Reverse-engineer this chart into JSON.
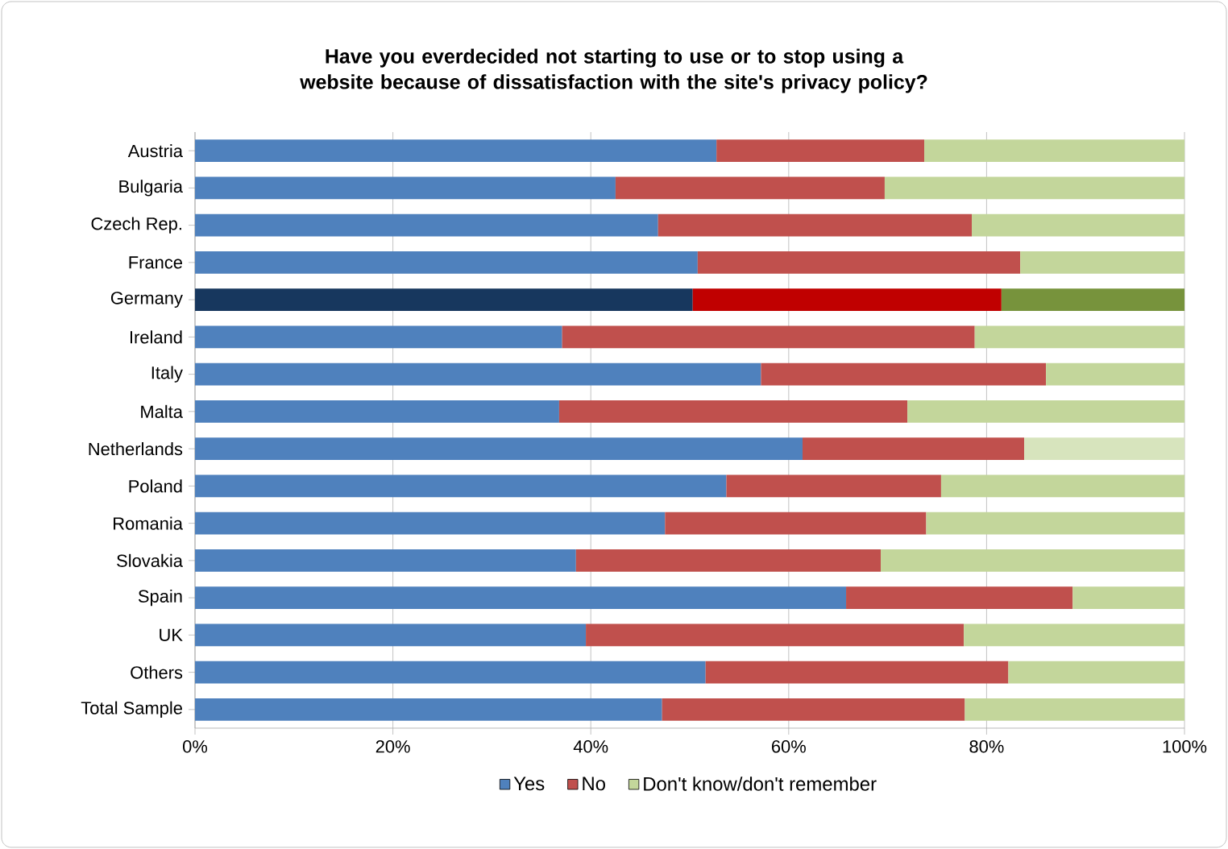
{
  "chart_data": {
    "type": "bar",
    "orientation": "horizontal",
    "stacked": true,
    "title": "Have you everdecided not starting to use or to stop using a website because of dissatisfaction with the site's privacy policy?",
    "categories": [
      "Austria",
      "Bulgaria",
      "Czech Rep.",
      "France",
      "Germany",
      "Ireland",
      "Italy",
      "Malta",
      "Netherlands",
      "Poland",
      "Romania",
      "Slovakia",
      "Spain",
      "UK",
      "Others",
      "Total Sample"
    ],
    "series": [
      {
        "name": "Yes",
        "color": "#4f81bd",
        "colors": [
          "#4f81bd",
          "#4f81bd",
          "#4f81bd",
          "#4f81bd",
          "#17375e",
          "#4f81bd",
          "#4f81bd",
          "#4f81bd",
          "#4f81bd",
          "#4f81bd",
          "#4f81bd",
          "#4f81bd",
          "#4f81bd",
          "#4f81bd",
          "#4f81bd",
          "#4f81bd"
        ],
        "values": [
          52.7,
          42.5,
          46.8,
          50.8,
          50.3,
          37.1,
          57.2,
          36.8,
          61.4,
          53.7,
          47.5,
          38.5,
          65.8,
          39.5,
          51.6,
          47.2
        ]
      },
      {
        "name": "No",
        "color": "#c0504d",
        "colors": [
          "#c0504d",
          "#c0504d",
          "#c0504d",
          "#c0504d",
          "#c00000",
          "#c0504d",
          "#c0504d",
          "#c0504d",
          "#c0504d",
          "#c0504d",
          "#c0504d",
          "#c0504d",
          "#c0504d",
          "#c0504d",
          "#c0504d",
          "#c0504d"
        ],
        "values": [
          21.0,
          27.2,
          31.7,
          32.6,
          31.2,
          41.7,
          28.8,
          35.2,
          22.4,
          21.7,
          26.4,
          30.8,
          22.9,
          38.2,
          30.6,
          30.6
        ]
      },
      {
        "name": "Don't know/don't remember",
        "color": "#c3d69b",
        "colors": [
          "#c3d69b",
          "#c3d69b",
          "#c3d69b",
          "#c3d69b",
          "#77933c",
          "#c3d69b",
          "#c3d69b",
          "#c3d69b",
          "#d7e4bd",
          "#c3d69b",
          "#c3d69b",
          "#c3d69b",
          "#c3d69b",
          "#c3d69b",
          "#c3d69b",
          "#c3d69b"
        ],
        "values": [
          26.3,
          30.3,
          21.5,
          16.6,
          18.5,
          21.2,
          14.0,
          28.0,
          16.2,
          24.6,
          26.1,
          30.7,
          11.3,
          22.3,
          17.8,
          22.2
        ]
      }
    ],
    "xlim": [
      0,
      100
    ],
    "xticks": [
      {
        "value": 0,
        "label": "0%"
      },
      {
        "value": 20,
        "label": "20%"
      },
      {
        "value": 40,
        "label": "40%"
      },
      {
        "value": 60,
        "label": "60%"
      },
      {
        "value": 80,
        "label": "80%"
      },
      {
        "value": 100,
        "label": "100%"
      }
    ],
    "grid": "x",
    "legend": "bottom"
  }
}
